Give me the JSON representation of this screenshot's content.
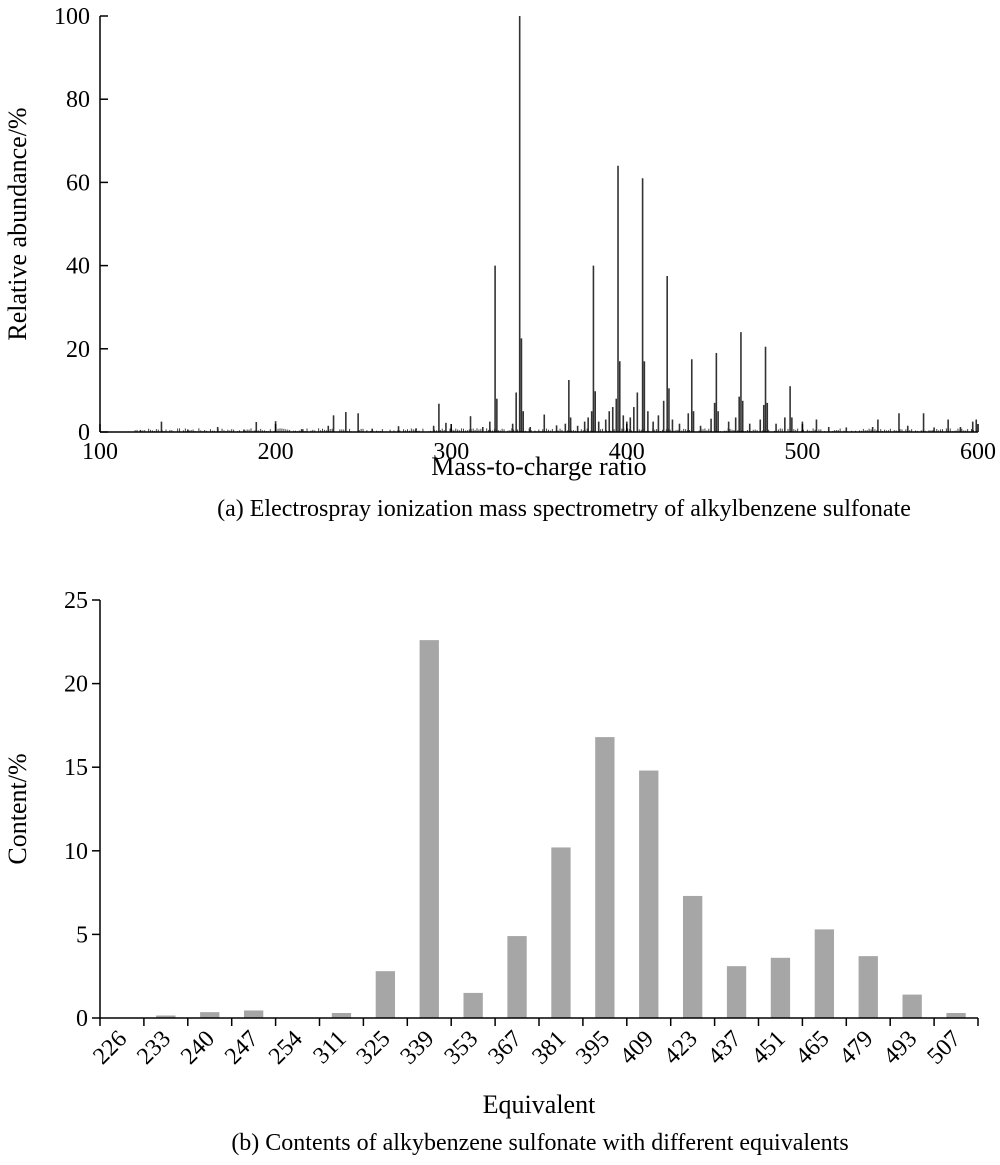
{
  "chart_data": [
    {
      "type": "line",
      "caption": "(a) Electrospray ionization mass spectrometry of alkylbenzene sulfonate",
      "xlabel": "Mass-to-charge ratio",
      "ylabel": "Relative abundance/%",
      "xlim": [
        100,
        600
      ],
      "ylim": [
        0,
        100
      ],
      "xticks": [
        100,
        200,
        300,
        400,
        500,
        600
      ],
      "yticks": [
        0,
        20,
        40,
        60,
        80,
        100
      ],
      "grid": false,
      "peaks": [
        [
          123,
          0.5
        ],
        [
          135,
          2.5
        ],
        [
          150,
          0.6
        ],
        [
          167,
          1.2
        ],
        [
          182,
          0.6
        ],
        [
          189,
          2.4
        ],
        [
          200,
          2.6
        ],
        [
          215,
          0.7
        ],
        [
          230,
          1.5
        ],
        [
          233,
          4
        ],
        [
          240,
          4.8
        ],
        [
          247,
          4.5
        ],
        [
          255,
          0.8
        ],
        [
          270,
          1.4
        ],
        [
          280,
          0.9
        ],
        [
          290,
          1.5
        ],
        [
          293,
          6.8
        ],
        [
          297,
          2.2
        ],
        [
          300,
          1.1
        ],
        [
          311,
          3.8
        ],
        [
          318,
          1.2
        ],
        [
          322,
          2.5
        ],
        [
          325,
          40
        ],
        [
          326,
          8
        ],
        [
          335,
          2
        ],
        [
          337,
          9.5
        ],
        [
          339,
          100
        ],
        [
          340,
          22.5
        ],
        [
          341,
          5
        ],
        [
          345,
          1.2
        ],
        [
          353,
          4.2
        ],
        [
          360,
          1.6
        ],
        [
          365,
          2
        ],
        [
          367,
          12.5
        ],
        [
          368,
          3.5
        ],
        [
          372,
          1.5
        ],
        [
          376,
          2.5
        ],
        [
          378,
          3.5
        ],
        [
          380,
          5
        ],
        [
          381,
          40
        ],
        [
          382,
          9.8
        ],
        [
          384,
          2.5
        ],
        [
          388,
          3
        ],
        [
          390,
          5
        ],
        [
          392,
          6
        ],
        [
          394,
          8
        ],
        [
          395,
          64
        ],
        [
          396,
          17
        ],
        [
          398,
          4
        ],
        [
          400,
          2.5
        ],
        [
          402,
          3.5
        ],
        [
          404,
          6
        ],
        [
          406,
          9.5
        ],
        [
          409,
          61
        ],
        [
          410,
          17
        ],
        [
          412,
          5
        ],
        [
          415,
          2.5
        ],
        [
          418,
          4
        ],
        [
          421,
          7.5
        ],
        [
          423,
          37.5
        ],
        [
          424,
          10.5
        ],
        [
          426,
          3
        ],
        [
          430,
          2
        ],
        [
          435,
          4.5
        ],
        [
          437,
          17.5
        ],
        [
          438,
          5
        ],
        [
          442,
          1.5
        ],
        [
          448,
          3.2
        ],
        [
          450,
          7
        ],
        [
          451,
          19
        ],
        [
          452,
          5
        ],
        [
          458,
          2.5
        ],
        [
          462,
          3.5
        ],
        [
          464,
          8.5
        ],
        [
          465,
          24
        ],
        [
          466,
          7.5
        ],
        [
          470,
          2
        ],
        [
          476,
          3
        ],
        [
          478,
          6.5
        ],
        [
          479,
          20.5
        ],
        [
          480,
          7
        ],
        [
          485,
          2
        ],
        [
          490,
          3.5
        ],
        [
          493,
          11
        ],
        [
          494,
          3.5
        ],
        [
          500,
          2.5
        ],
        [
          508,
          3
        ],
        [
          515,
          1.2
        ],
        [
          525,
          1.1
        ],
        [
          540,
          1.2
        ],
        [
          543,
          3
        ],
        [
          555,
          4.5
        ],
        [
          560,
          1.5
        ],
        [
          569,
          4.5
        ],
        [
          575,
          1.1
        ],
        [
          583,
          3
        ],
        [
          590,
          1.2
        ],
        [
          597,
          2.5
        ],
        [
          599,
          3
        ]
      ]
    },
    {
      "type": "bar",
      "caption": "(b) Contents of alkybenzene sulfonate with different equivalents",
      "xlabel": "Equivalent",
      "ylabel": "Content/%",
      "ylim": [
        0,
        25
      ],
      "yticks": [
        0,
        5,
        10,
        15,
        20,
        25
      ],
      "grid": false,
      "categories": [
        "226",
        "233",
        "240",
        "247",
        "254",
        "311",
        "325",
        "339",
        "353",
        "367",
        "381",
        "395",
        "409",
        "423",
        "437",
        "451",
        "465",
        "479",
        "493",
        "507"
      ],
      "values": [
        0,
        0.15,
        0.35,
        0.45,
        0,
        0.3,
        2.8,
        22.6,
        1.5,
        4.9,
        10.2,
        16.8,
        14.8,
        7.3,
        3.1,
        3.6,
        5.3,
        3.7,
        1.4,
        0.3
      ],
      "bar_color": "#a6a6a6"
    }
  ]
}
